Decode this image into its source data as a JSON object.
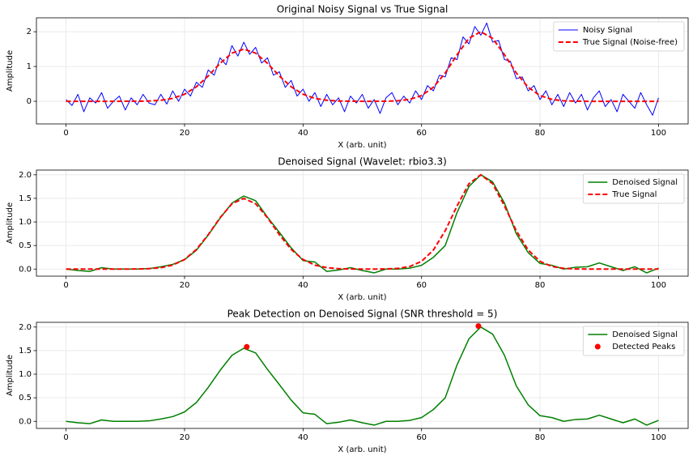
{
  "chart_data": [
    {
      "type": "line",
      "title": "Original Noisy Signal vs True Signal",
      "xlabel": "X (arb. unit)",
      "ylabel": "Amplitude",
      "xlim": [
        -5,
        105
      ],
      "xticks": [
        0,
        20,
        40,
        60,
        80,
        100
      ],
      "ylim": [
        -0.65,
        2.4
      ],
      "yticks": [
        0,
        1,
        2
      ],
      "grid": true,
      "legend": "upper right",
      "series": [
        {
          "name": "Noisy Signal",
          "color": "#0000ff",
          "kind": "line",
          "width": 1,
          "x": [
            0,
            1,
            2,
            3,
            4,
            5,
            6,
            7,
            8,
            9,
            10,
            11,
            12,
            13,
            14,
            15,
            16,
            17,
            18,
            19,
            20,
            21,
            22,
            23,
            24,
            25,
            26,
            27,
            28,
            29,
            30,
            31,
            32,
            33,
            34,
            35,
            36,
            37,
            38,
            39,
            40,
            41,
            42,
            43,
            44,
            45,
            46,
            47,
            48,
            49,
            50,
            51,
            52,
            53,
            54,
            55,
            56,
            57,
            58,
            59,
            60,
            61,
            62,
            63,
            64,
            65,
            66,
            67,
            68,
            69,
            70,
            71,
            72,
            73,
            74,
            75,
            76,
            77,
            78,
            79,
            80,
            81,
            82,
            83,
            84,
            85,
            86,
            87,
            88,
            89,
            90,
            91,
            92,
            93,
            94,
            95,
            96,
            97,
            98,
            99,
            100
          ],
          "values": [
            0.05,
            -0.12,
            0.2,
            -0.3,
            0.1,
            -0.05,
            0.25,
            -0.2,
            0.0,
            0.15,
            -0.25,
            0.1,
            -0.1,
            0.2,
            -0.05,
            -0.1,
            0.2,
            -0.08,
            0.3,
            0.0,
            0.35,
            0.15,
            0.55,
            0.4,
            0.9,
            0.75,
            1.25,
            1.05,
            1.6,
            1.3,
            1.7,
            1.35,
            1.55,
            1.1,
            1.25,
            0.75,
            0.85,
            0.4,
            0.6,
            0.15,
            0.35,
            0.0,
            0.25,
            -0.15,
            0.2,
            -0.1,
            0.1,
            -0.3,
            0.15,
            -0.05,
            0.2,
            -0.2,
            0.05,
            -0.35,
            0.1,
            0.25,
            -0.1,
            0.15,
            -0.05,
            0.3,
            0.05,
            0.45,
            0.3,
            0.75,
            0.7,
            1.25,
            1.2,
            1.85,
            1.65,
            2.15,
            1.9,
            2.25,
            1.7,
            1.75,
            1.2,
            1.15,
            0.65,
            0.7,
            0.3,
            0.45,
            0.05,
            0.3,
            -0.1,
            0.2,
            -0.15,
            0.25,
            -0.05,
            0.2,
            -0.25,
            0.1,
            0.3,
            -0.15,
            0.05,
            -0.3,
            0.2,
            0.0,
            -0.2,
            0.25,
            -0.1,
            -0.4,
            0.1
          ]
        },
        {
          "name": "True Signal (Noise-free)",
          "color": "#ff0000",
          "kind": "line",
          "width": 2,
          "dashed": true,
          "x": [
            0,
            2,
            4,
            6,
            8,
            10,
            12,
            14,
            16,
            18,
            20,
            22,
            24,
            26,
            28,
            30,
            32,
            34,
            36,
            38,
            40,
            42,
            44,
            46,
            48,
            50,
            52,
            54,
            56,
            58,
            60,
            62,
            64,
            66,
            68,
            70,
            72,
            74,
            76,
            78,
            80,
            82,
            84,
            86,
            88,
            90,
            92,
            94,
            96,
            98,
            100
          ],
          "values": [
            0,
            0,
            0,
            0,
            0,
            0.001,
            0.002,
            0.009,
            0.03,
            0.084,
            0.203,
            0.417,
            0.73,
            1.09,
            1.385,
            1.5,
            1.385,
            1.09,
            0.73,
            0.417,
            0.203,
            0.084,
            0.03,
            0.009,
            0.002,
            0,
            0,
            0.003,
            0.015,
            0.055,
            0.164,
            0.404,
            0.813,
            1.34,
            1.81,
            2,
            1.81,
            1.34,
            0.813,
            0.404,
            0.164,
            0.055,
            0.015,
            0.003,
            0,
            0,
            0,
            0,
            0,
            0,
            0
          ]
        }
      ]
    },
    {
      "type": "line",
      "title": "Denoised Signal (Wavelet: rbio3.3)",
      "xlabel": "X (arb. unit)",
      "ylabel": "Amplitude",
      "xlim": [
        -5,
        105
      ],
      "xticks": [
        0,
        20,
        40,
        60,
        80,
        100
      ],
      "ylim": [
        -0.15,
        2.1
      ],
      "yticks": [
        {
          "value": 0,
          "label": "0.0"
        },
        {
          "value": 0.5,
          "label": "0.5"
        },
        {
          "value": 1,
          "label": "1.0"
        },
        {
          "value": 1.5,
          "label": "1.5"
        },
        {
          "value": 2,
          "label": "2.0"
        }
      ],
      "grid": true,
      "legend": "upper right",
      "series": [
        {
          "name": "Denoised Signal",
          "color": "#008000",
          "kind": "line",
          "width": 1.5,
          "x": [
            0,
            2,
            4,
            6,
            8,
            10,
            12,
            14,
            16,
            18,
            20,
            22,
            24,
            26,
            28,
            30,
            32,
            34,
            36,
            38,
            40,
            42,
            44,
            46,
            48,
            50,
            52,
            54,
            56,
            58,
            60,
            62,
            64,
            66,
            68,
            70,
            72,
            74,
            76,
            78,
            80,
            82,
            84,
            86,
            88,
            90,
            92,
            94,
            96,
            98,
            100
          ],
          "values": [
            0,
            -0.03,
            -0.05,
            0.03,
            0,
            0,
            0,
            0.01,
            0.05,
            0.1,
            0.2,
            0.4,
            0.72,
            1.08,
            1.4,
            1.55,
            1.45,
            1.1,
            0.78,
            0.45,
            0.18,
            0.15,
            -0.05,
            -0.02,
            0.03,
            -0.03,
            -0.08,
            0,
            0,
            0.02,
            0.08,
            0.25,
            0.5,
            1.2,
            1.75,
            2.0,
            1.85,
            1.4,
            0.75,
            0.35,
            0.12,
            0.08,
            0.0,
            0.04,
            0.05,
            0.13,
            0.05,
            -0.03,
            0.05,
            -0.08,
            0.02
          ]
        },
        {
          "name": "True Signal",
          "color": "#ff0000",
          "kind": "line",
          "width": 2,
          "dashed": true,
          "x": [
            0,
            2,
            4,
            6,
            8,
            10,
            12,
            14,
            16,
            18,
            20,
            22,
            24,
            26,
            28,
            30,
            32,
            34,
            36,
            38,
            40,
            42,
            44,
            46,
            48,
            50,
            52,
            54,
            56,
            58,
            60,
            62,
            64,
            66,
            68,
            70,
            72,
            74,
            76,
            78,
            80,
            82,
            84,
            86,
            88,
            90,
            92,
            94,
            96,
            98,
            100
          ],
          "values": [
            0,
            0,
            0,
            0,
            0,
            0.001,
            0.002,
            0.009,
            0.03,
            0.084,
            0.203,
            0.417,
            0.73,
            1.09,
            1.385,
            1.5,
            1.385,
            1.09,
            0.73,
            0.417,
            0.203,
            0.084,
            0.03,
            0.009,
            0.002,
            0,
            0,
            0.003,
            0.015,
            0.055,
            0.164,
            0.404,
            0.813,
            1.34,
            1.81,
            2,
            1.81,
            1.34,
            0.813,
            0.404,
            0.164,
            0.055,
            0.015,
            0.003,
            0,
            0,
            0,
            0,
            0,
            0,
            0
          ]
        }
      ]
    },
    {
      "type": "line",
      "title": "Peak Detection on Denoised Signal (SNR threshold = 5)",
      "xlabel": "X (arb. unit)",
      "ylabel": "Amplitude",
      "xlim": [
        -5,
        105
      ],
      "xticks": [
        0,
        20,
        40,
        60,
        80,
        100
      ],
      "ylim": [
        -0.15,
        2.1
      ],
      "yticks": [
        {
          "value": 0,
          "label": "0.0"
        },
        {
          "value": 0.5,
          "label": "0.5"
        },
        {
          "value": 1,
          "label": "1.0"
        },
        {
          "value": 1.5,
          "label": "1.5"
        },
        {
          "value": 2,
          "label": "2.0"
        }
      ],
      "grid": true,
      "legend": "upper right",
      "series": [
        {
          "name": "Denoised Signal",
          "color": "#008000",
          "kind": "line",
          "width": 1.5,
          "x": [
            0,
            2,
            4,
            6,
            8,
            10,
            12,
            14,
            16,
            18,
            20,
            22,
            24,
            26,
            28,
            30,
            32,
            34,
            36,
            38,
            40,
            42,
            44,
            46,
            48,
            50,
            52,
            54,
            56,
            58,
            60,
            62,
            64,
            66,
            68,
            70,
            72,
            74,
            76,
            78,
            80,
            82,
            84,
            86,
            88,
            90,
            92,
            94,
            96,
            98,
            100
          ],
          "values": [
            0,
            -0.03,
            -0.05,
            0.03,
            0,
            0,
            0,
            0.01,
            0.05,
            0.1,
            0.2,
            0.4,
            0.72,
            1.08,
            1.4,
            1.55,
            1.45,
            1.1,
            0.78,
            0.45,
            0.18,
            0.15,
            -0.05,
            -0.02,
            0.03,
            -0.03,
            -0.08,
            0,
            0,
            0.02,
            0.08,
            0.25,
            0.5,
            1.2,
            1.75,
            2.0,
            1.85,
            1.4,
            0.75,
            0.35,
            0.12,
            0.08,
            0.0,
            0.04,
            0.05,
            0.13,
            0.05,
            -0.03,
            0.05,
            -0.08,
            0.02
          ]
        },
        {
          "name": "Detected Peaks",
          "color": "#ff0000",
          "kind": "scatter",
          "x": [
            30.5,
            69.6
          ],
          "values": [
            1.58,
            2.02
          ]
        }
      ]
    }
  ]
}
